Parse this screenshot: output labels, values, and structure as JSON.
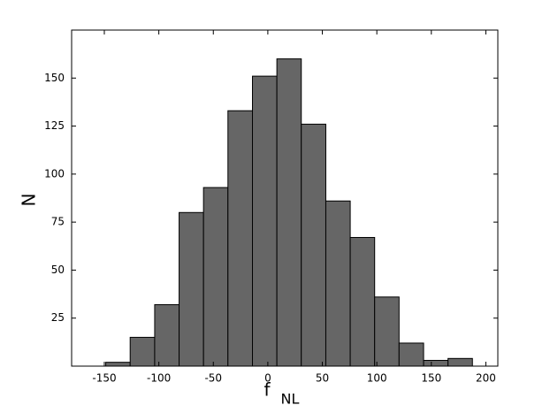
{
  "chart_data": {
    "type": "histogram",
    "bins": [
      -148.7,
      -126.3,
      -103.8,
      -81.4,
      -59.0,
      -36.6,
      -14.1,
      8.3,
      30.7,
      53.2,
      75.6,
      98.0,
      120.4,
      142.9,
      165.3,
      187.7
    ],
    "values": [
      2,
      15,
      32,
      80,
      93,
      133,
      151,
      160,
      126,
      86,
      67,
      36,
      12,
      3,
      4
    ],
    "color": "#666666",
    "xlim": [
      -180,
      211
    ],
    "xticks": [
      -150,
      -100,
      -50,
      0,
      50,
      100,
      150,
      200
    ],
    "ylim": [
      0,
      175
    ],
    "yticks": [
      25,
      50,
      75,
      100,
      125,
      150
    ],
    "x_label": "f",
    "x_label_sub": "NL",
    "y_label": "N",
    "grid": false
  }
}
